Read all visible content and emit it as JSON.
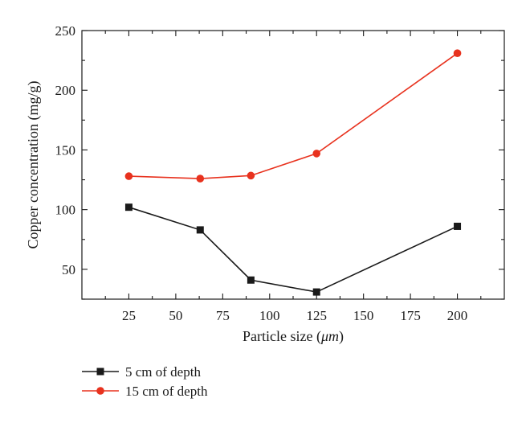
{
  "chart_data": {
    "type": "line",
    "xlabel_prefix": "Particle size (",
    "xlabel_unit": "μm",
    "xlabel_suffix": ")",
    "ylabel": "Copper concentration (mg/g)",
    "xlim": [
      0,
      225
    ],
    "ylim": [
      25,
      250
    ],
    "x_ticks": [
      25,
      50,
      75,
      100,
      125,
      150,
      175,
      200
    ],
    "y_ticks": [
      50,
      100,
      150,
      200,
      250
    ],
    "x_minor_ticks": [
      12.5,
      37.5,
      62.5,
      87.5,
      112.5,
      137.5,
      162.5,
      187.5,
      212.5
    ],
    "y_minor_ticks": [
      25,
      75,
      125,
      175,
      225
    ],
    "grid": false,
    "legend_position": "bottom-left-outside",
    "series": [
      {
        "name": "5 cm of depth",
        "color": "#1a1a1a",
        "marker": "square",
        "x": [
          25,
          63,
          90,
          125,
          200
        ],
        "y": [
          102,
          83,
          41,
          31,
          86
        ]
      },
      {
        "name": "15 cm of depth",
        "color": "#e8321e",
        "marker": "circle",
        "x": [
          25,
          63,
          90,
          125,
          200
        ],
        "y": [
          128,
          126,
          128.5,
          147,
          231
        ]
      }
    ]
  }
}
